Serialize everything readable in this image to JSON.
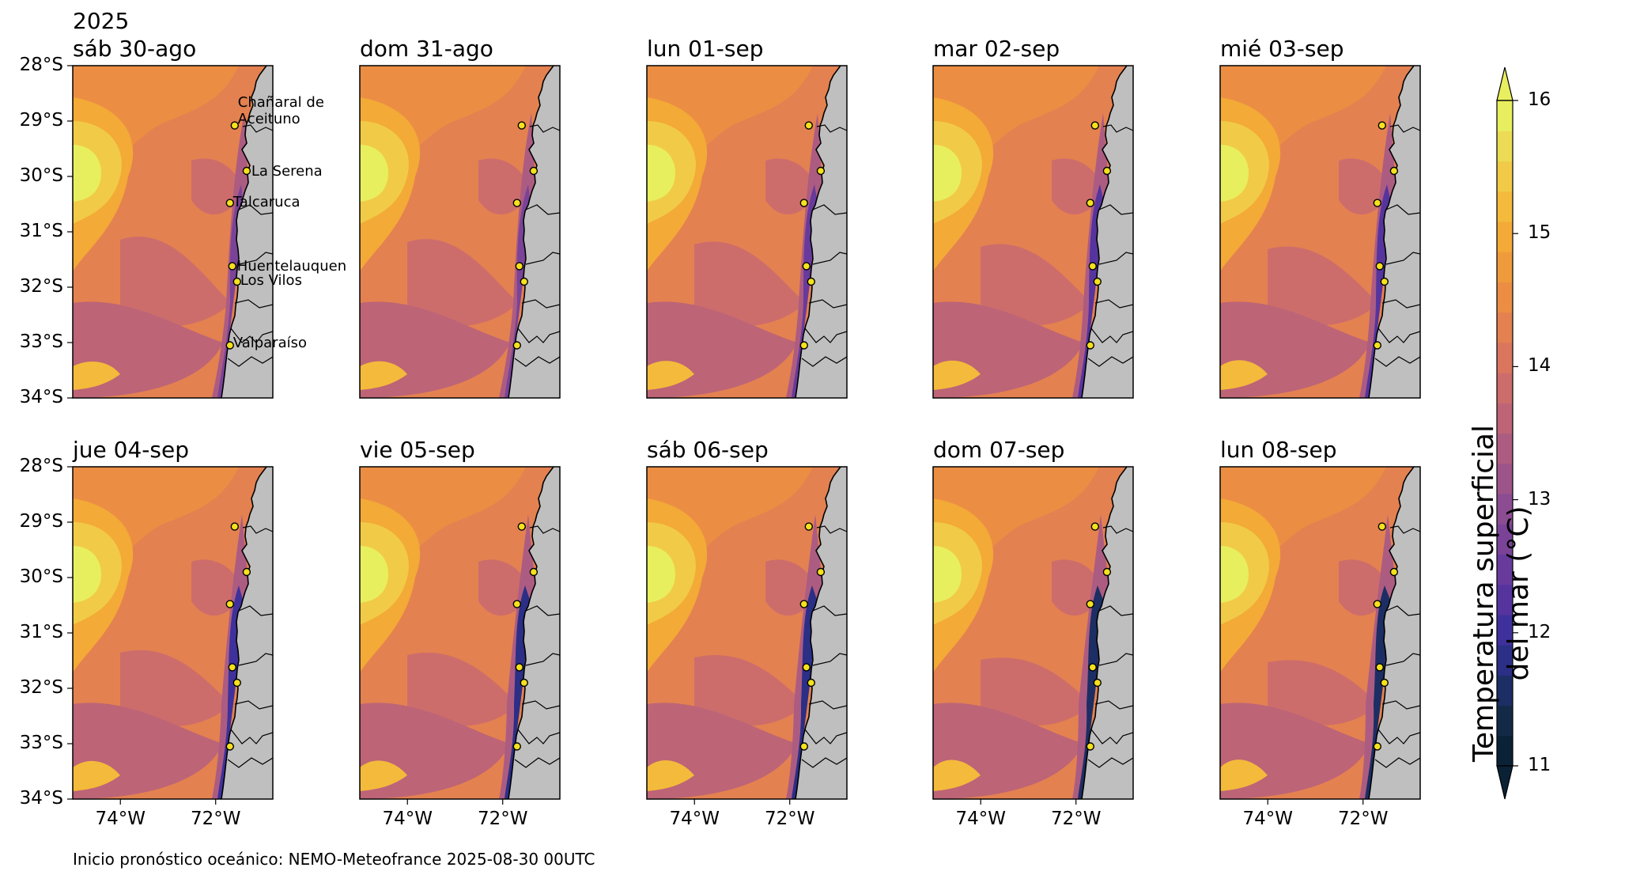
{
  "year": "2025",
  "panels": [
    {
      "label": "sáb 30-ago"
    },
    {
      "label": "dom 31-ago"
    },
    {
      "label": "lun 01-sep"
    },
    {
      "label": "mar 02-sep"
    },
    {
      "label": "mié 03-sep"
    },
    {
      "label": "jue 04-sep"
    },
    {
      "label": "vie 05-sep"
    },
    {
      "label": "sáb 06-sep"
    },
    {
      "label": "dom 07-sep"
    },
    {
      "label": "lun 08-sep"
    }
  ],
  "lat_ticks": [
    "28°S",
    "29°S",
    "30°S",
    "31°S",
    "32°S",
    "33°S",
    "34°S"
  ],
  "lon_ticks": [
    "74°W",
    "72°W"
  ],
  "map_extent": {
    "lon": [
      -75,
      -70.8
    ],
    "lat": [
      -34,
      -28
    ]
  },
  "cities": [
    {
      "name": "Chañaral de\nAceituno",
      "lon": -71.6,
      "lat": -29.08
    },
    {
      "name": "La Serena",
      "lon": -71.35,
      "lat": -29.9
    },
    {
      "name": "Talcaruca",
      "lon": -71.7,
      "lat": -30.48
    },
    {
      "name": "Huentelauquen",
      "lon": -71.65,
      "lat": -31.62
    },
    {
      "name": "Los Vilos",
      "lon": -71.55,
      "lat": -31.9
    },
    {
      "name": "Valparaíso",
      "lon": -71.7,
      "lat": -33.05
    }
  ],
  "colorbar": {
    "title_line1": "Temperatura superficial",
    "title_line2": "del mar (°C)",
    "ticks": [
      "11",
      "12",
      "13",
      "14",
      "15",
      "16"
    ],
    "range": [
      11,
      16
    ],
    "colors": [
      "#0b2135",
      "#132a47",
      "#1c2e63",
      "#2b2f86",
      "#3e319c",
      "#55349e",
      "#683a9c",
      "#7a4398",
      "#8b4c91",
      "#9c5489",
      "#ad5c81",
      "#bd6477",
      "#cd6d6b",
      "#da765e",
      "#e48150",
      "#eb8e44",
      "#f09b3b",
      "#f3aa37",
      "#f4ba3b",
      "#f1cb47",
      "#ecdc55",
      "#e8ef5f"
    ]
  },
  "source_note": "Inicio pronóstico oceánico: NEMO-Meteofrance 2025-08-30 00UTC"
}
